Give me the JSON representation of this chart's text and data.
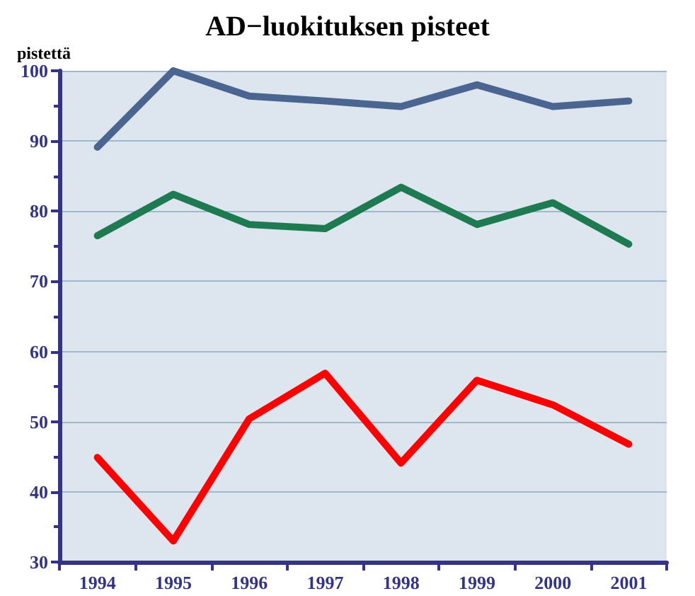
{
  "chart_data": {
    "type": "line",
    "title": "AD−luokituksen pisteet",
    "ylabel": "pistettä",
    "categories": [
      "1994",
      "1995",
      "1996",
      "1997",
      "1998",
      "1999",
      "2000",
      "2001"
    ],
    "series": [
      {
        "color": "#4a6590",
        "values": [
          89.1,
          100,
          96.4,
          95.7,
          94.9,
          98,
          94.9,
          95.7
        ]
      },
      {
        "color": "#1e7a50",
        "values": [
          76.5,
          82.4,
          78.1,
          77.5,
          83.4,
          78.1,
          81.2,
          75.3
        ]
      },
      {
        "color": "#ff0000",
        "values": [
          44.9,
          33,
          50.4,
          56.9,
          44.1,
          55.9,
          52.4,
          46.8
        ]
      }
    ],
    "ylim": [
      30,
      100
    ],
    "yticks": [
      30,
      40,
      50,
      60,
      70,
      80,
      90,
      100
    ],
    "grid": "y",
    "marker": "none",
    "line_style": "solid"
  }
}
